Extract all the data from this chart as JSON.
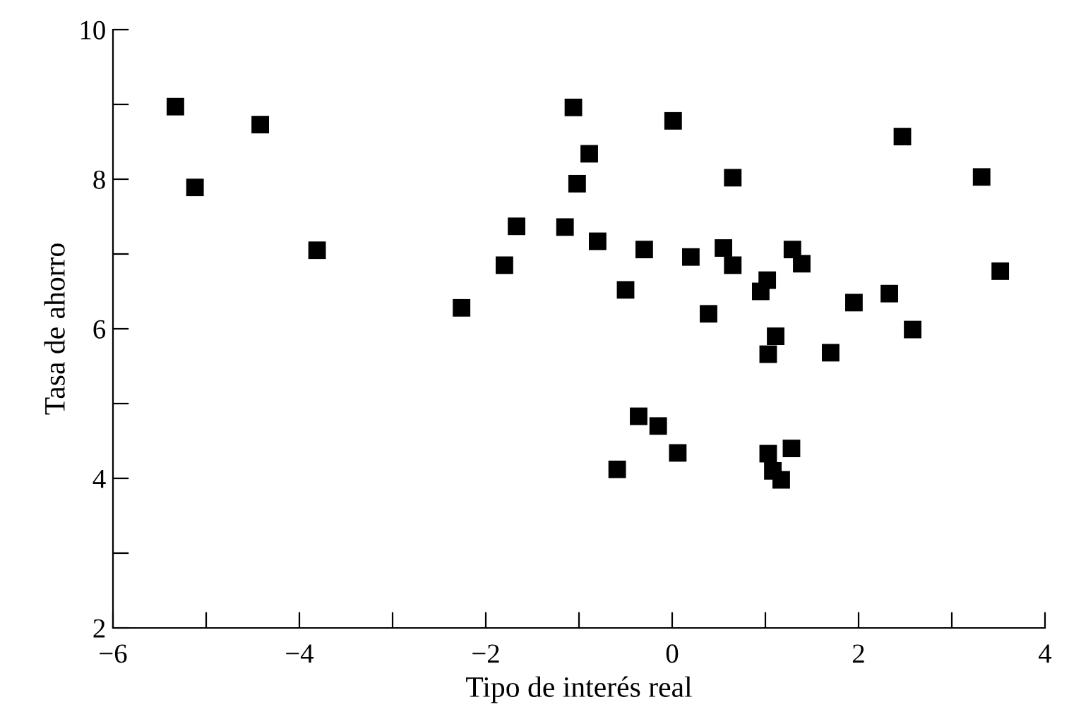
{
  "chart_data": {
    "type": "scatter",
    "xlabel": "Tipo de interés real",
    "ylabel": "Tasa de ahorro",
    "xlim": [
      -6,
      4
    ],
    "ylim": [
      2,
      10
    ],
    "xticks": [
      {
        "value": -6,
        "label": "−6"
      },
      {
        "value": -5,
        "label": null
      },
      {
        "value": -4,
        "label": "−4"
      },
      {
        "value": -3,
        "label": null
      },
      {
        "value": -2,
        "label": "−2"
      },
      {
        "value": -1,
        "label": null
      },
      0,
      {
        "value": 1,
        "label": null
      },
      2,
      {
        "value": 3,
        "label": null
      },
      4
    ],
    "yticks": [
      2,
      {
        "value": 3,
        "label": null
      },
      4,
      {
        "value": 5,
        "label": null
      },
      6,
      {
        "value": 7,
        "label": null
      },
      8,
      {
        "value": 9,
        "label": null
      },
      10
    ],
    "grid": false,
    "marker": "square",
    "series": [
      {
        "color": "#000000",
        "x": [
          -5.33,
          -5.12,
          -4.42,
          -3.81,
          -2.26,
          -1.8,
          -1.67,
          -1.06,
          0.01,
          2.47,
          -0.89,
          -1.02,
          0.65,
          3.32,
          -1.15,
          -0.8,
          -0.3,
          0.2,
          0.55,
          0.65,
          1.29,
          1.39,
          1.02,
          0.95,
          3.52,
          -0.5,
          0.39,
          1.95,
          2.33,
          2.58,
          1.11,
          1.03,
          1.7,
          -0.36,
          -0.15,
          0.06,
          -0.59,
          1.03,
          1.28,
          1.08,
          1.17
        ],
        "values": [
          8.97,
          7.89,
          8.73,
          7.05,
          6.28,
          6.85,
          7.37,
          8.96,
          8.78,
          8.57,
          8.34,
          7.94,
          8.02,
          8.03,
          7.36,
          7.17,
          7.06,
          6.96,
          7.08,
          6.85,
          7.06,
          6.87,
          6.65,
          6.5,
          6.77,
          6.52,
          6.2,
          6.35,
          6.47,
          5.99,
          5.9,
          5.66,
          5.68,
          4.83,
          4.7,
          4.34,
          4.12,
          4.33,
          4.4,
          4.1,
          3.98
        ]
      }
    ]
  }
}
